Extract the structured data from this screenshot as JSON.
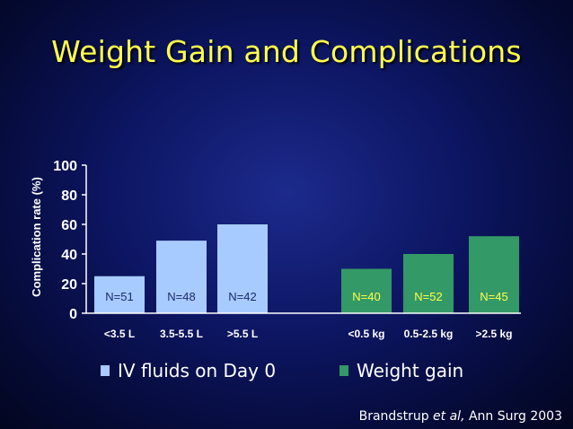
{
  "slide": {
    "title": "Weight Gain and Complications",
    "citation_author": "Brandstrup ",
    "citation_etal": "et al,",
    "citation_rest": " Ann Surg 2003"
  },
  "legend": [
    {
      "label": "IV fluids on Day 0",
      "color": "#a8cbff"
    },
    {
      "label": "Weight gain",
      "color": "#339966"
    }
  ],
  "chart_data": {
    "type": "bar",
    "ylabel": "Complication rate (%)",
    "ylim": [
      0,
      100
    ],
    "yticks": [
      0,
      20,
      40,
      60,
      80,
      100
    ],
    "grid": false,
    "legend_position": "bottom",
    "groups": [
      {
        "name": "IV fluids on Day 0",
        "color": "#a8cbff",
        "categories": [
          "<3.5 L",
          "3.5-5.5 L",
          ">5.5 L"
        ],
        "values": [
          25,
          49,
          60
        ],
        "n_labels": [
          "N=51",
          "N=48",
          "N=42"
        ],
        "n_label_color": "#1a2a6c"
      },
      {
        "name": "Weight gain",
        "color": "#339966",
        "categories": [
          "<0.5 kg",
          "0.5-2.5 kg",
          ">2.5 kg"
        ],
        "values": [
          30,
          40,
          52
        ],
        "n_labels": [
          "N=40",
          "N=52",
          "N=45"
        ],
        "n_label_color": "#ffff4d"
      }
    ]
  }
}
